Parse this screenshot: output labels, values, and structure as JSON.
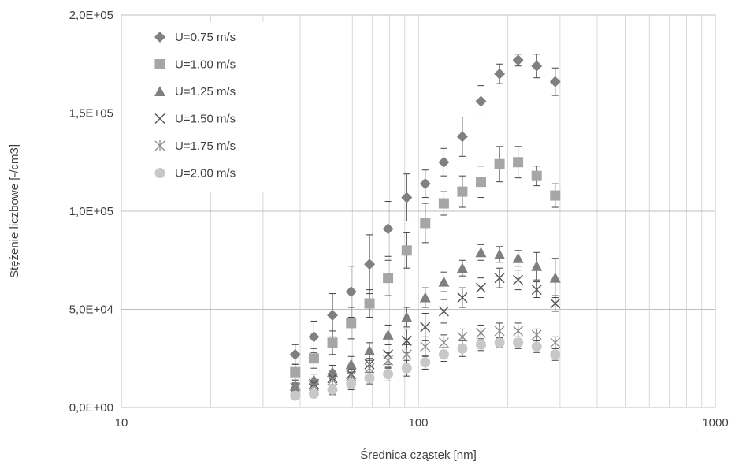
{
  "chart_data": {
    "type": "scatter",
    "title": "",
    "xlabel": "Średnica cząstek [nm]",
    "ylabel": "Stężenie liczbowe [-/cm3]",
    "xscale": "log",
    "xlim": [
      10,
      1000
    ],
    "ylim": [
      0,
      200000
    ],
    "x_tick_labels": [
      "10",
      "100",
      "1000"
    ],
    "y_tick_labels": [
      "0,0E+00",
      "5,0E+04",
      "1,0E+05",
      "1,5E+05",
      "2,0E+05"
    ],
    "grid": true,
    "legend_position": "top-left",
    "error_bars": true,
    "x": [
      38.5,
      44.5,
      51.4,
      59.4,
      68.5,
      79.1,
      91.4,
      105.5,
      121.9,
      140.7,
      162.5,
      187.7,
      216.7,
      250.3,
      289.0
    ],
    "series": [
      {
        "name": "U=0.75 m/s",
        "marker": "diamond",
        "color": "#808080",
        "values": [
          27000,
          36000,
          47000,
          59000,
          73000,
          91000,
          107000,
          114000,
          125000,
          138000,
          156000,
          170000,
          177000,
          174000,
          166000
        ],
        "errors": [
          5000,
          8000,
          11000,
          13000,
          15000,
          14000,
          12000,
          7000,
          7000,
          10000,
          8000,
          5000,
          3000,
          6000,
          7000
        ]
      },
      {
        "name": "U=1.00 m/s",
        "marker": "square",
        "color": "#a6a6a6",
        "values": [
          18000,
          25000,
          33000,
          43000,
          53000,
          66000,
          80000,
          94000,
          104000,
          110000,
          115000,
          124000,
          125000,
          118000,
          108000
        ],
        "errors": [
          4000,
          5000,
          6000,
          8000,
          7000,
          9000,
          9000,
          10000,
          6000,
          8000,
          8000,
          9000,
          8000,
          5000,
          6000
        ]
      },
      {
        "name": "U=1.25 m/s",
        "marker": "triangle",
        "color": "#7f7f7f",
        "values": [
          11000,
          14000,
          18000,
          22000,
          29000,
          37000,
          46000,
          56000,
          64000,
          71000,
          79000,
          78000,
          76000,
          72000,
          66000
        ],
        "errors": [
          2500,
          3000,
          3500,
          4000,
          4000,
          5000,
          5000,
          5000,
          5000,
          4000,
          4000,
          4000,
          4000,
          7000,
          10000
        ]
      },
      {
        "name": "U=1.50 m/s",
        "marker": "x",
        "color": "#595959",
        "values": [
          10000,
          12000,
          15000,
          17000,
          22000,
          27000,
          34000,
          41000,
          49000,
          56000,
          61000,
          66000,
          65000,
          60000,
          53000
        ],
        "errors": [
          2500,
          3000,
          3500,
          4000,
          5000,
          5000,
          6000,
          7000,
          6000,
          5000,
          5000,
          5000,
          5000,
          4000,
          4000
        ]
      },
      {
        "name": "U=1.75 m/s",
        "marker": "asterisk",
        "color": "#8c8c8c",
        "values": [
          10000,
          11000,
          14000,
          16000,
          20000,
          24000,
          27000,
          31000,
          33000,
          36000,
          38000,
          39000,
          39000,
          37000,
          33000
        ],
        "errors": [
          2000,
          2500,
          3000,
          3500,
          4000,
          4000,
          5000,
          5000,
          4000,
          4000,
          4000,
          4000,
          4000,
          3000,
          3000
        ]
      },
      {
        "name": "U=2.00 m/s",
        "marker": "circle",
        "color": "#c8c8c8",
        "values": [
          6000,
          7000,
          9000,
          12000,
          15000,
          17000,
          20000,
          23000,
          27000,
          30000,
          32000,
          33000,
          33000,
          31000,
          27000
        ],
        "errors": [
          1500,
          2000,
          2500,
          3000,
          3000,
          3500,
          4000,
          3500,
          3500,
          4000,
          3000,
          2500,
          3000,
          3000,
          3000
        ]
      }
    ]
  }
}
